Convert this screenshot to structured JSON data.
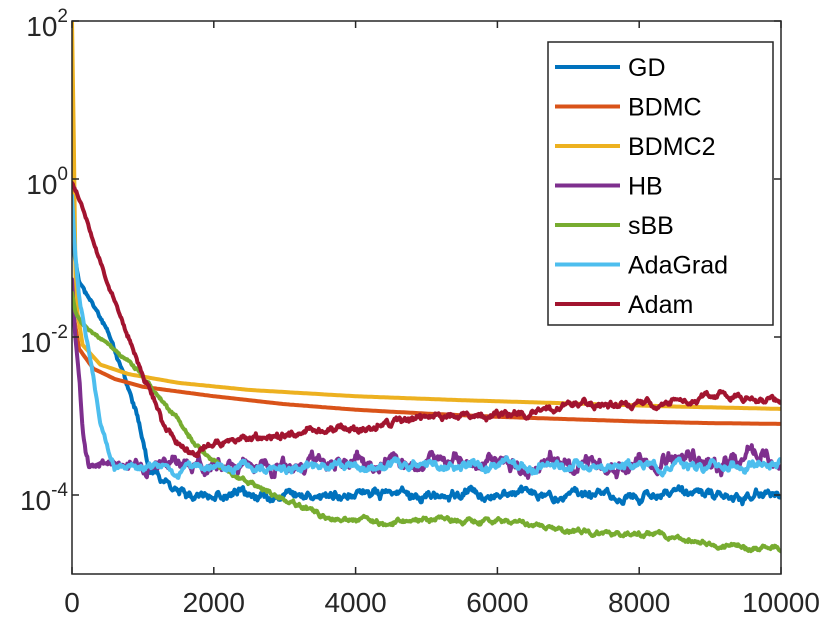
{
  "chart_data": {
    "type": "line",
    "title": "",
    "xlabel": "",
    "ylabel": "",
    "xlim": [
      0,
      10000
    ],
    "ylim_log10": [
      -5,
      2
    ],
    "y_scale": "log",
    "grid": false,
    "legend_position": "top-right",
    "x_ticks": [
      {
        "value": 0,
        "label": "0"
      },
      {
        "value": 2000,
        "label": "2000"
      },
      {
        "value": 4000,
        "label": "4000"
      },
      {
        "value": 6000,
        "label": "6000"
      },
      {
        "value": 8000,
        "label": "8000"
      },
      {
        "value": 10000,
        "label": "10000"
      }
    ],
    "y_ticks": [
      {
        "exp": 2,
        "base": "10",
        "sup": "2"
      },
      {
        "exp": 0,
        "base": "10",
        "sup": "0"
      },
      {
        "exp": -2,
        "base": "10",
        "sup": "-2"
      },
      {
        "exp": -4,
        "base": "10",
        "sup": "-4"
      }
    ],
    "series": [
      {
        "name": "GD",
        "color": "#0072BD",
        "noise": 0.035,
        "seed": 11,
        "points_log10": [
          [
            0,
            -0.4
          ],
          [
            30,
            -0.95
          ],
          [
            100,
            -1.3
          ],
          [
            300,
            -1.6
          ],
          [
            500,
            -1.9
          ],
          [
            700,
            -2.4
          ],
          [
            900,
            -2.95
          ],
          [
            1000,
            -3.3
          ],
          [
            1100,
            -3.65
          ],
          [
            1300,
            -3.8
          ],
          [
            1500,
            -3.95
          ],
          [
            1800,
            -4.0
          ],
          [
            2500,
            -4.0
          ],
          [
            3000,
            -4.02
          ],
          [
            4000,
            -3.98
          ],
          [
            5000,
            -4.0
          ],
          [
            6000,
            -3.97
          ],
          [
            7000,
            -4.0
          ],
          [
            8000,
            -4.0
          ],
          [
            9000,
            -4.0
          ],
          [
            10000,
            -4.0
          ]
        ]
      },
      {
        "name": "BDMC",
        "color": "#D95319",
        "noise": 0,
        "seed": 0,
        "points_log10": [
          [
            0,
            -1.6
          ],
          [
            100,
            -2.15
          ],
          [
            300,
            -2.4
          ],
          [
            600,
            -2.53
          ],
          [
            1000,
            -2.63
          ],
          [
            2000,
            -2.75
          ],
          [
            3000,
            -2.85
          ],
          [
            4000,
            -2.92
          ],
          [
            5000,
            -2.97
          ],
          [
            6000,
            -3.01
          ],
          [
            7000,
            -3.04
          ],
          [
            8000,
            -3.07
          ],
          [
            9000,
            -3.09
          ],
          [
            10000,
            -3.1
          ]
        ]
      },
      {
        "name": "BDMC2",
        "color": "#EDB120",
        "noise": 0,
        "seed": 0,
        "points_log10": [
          [
            0,
            2.0
          ],
          [
            20,
            1.5
          ],
          [
            30,
            -0.5
          ],
          [
            60,
            -1.6
          ],
          [
            150,
            -2.1
          ],
          [
            400,
            -2.35
          ],
          [
            800,
            -2.47
          ],
          [
            1500,
            -2.58
          ],
          [
            2500,
            -2.67
          ],
          [
            4000,
            -2.75
          ],
          [
            5500,
            -2.8
          ],
          [
            7000,
            -2.84
          ],
          [
            8500,
            -2.88
          ],
          [
            10000,
            -2.91
          ]
        ]
      },
      {
        "name": "HB",
        "color": "#7E2F8E",
        "noise": 0.06,
        "seed": 23,
        "points_log10": [
          [
            0,
            -1.3
          ],
          [
            40,
            -1.95
          ],
          [
            100,
            -2.5
          ],
          [
            150,
            -3.2
          ],
          [
            200,
            -3.5
          ],
          [
            250,
            -3.65
          ],
          [
            400,
            -3.62
          ],
          [
            1000,
            -3.6
          ],
          [
            3000,
            -3.6
          ],
          [
            5000,
            -3.58
          ],
          [
            7000,
            -3.6
          ],
          [
            10000,
            -3.58
          ]
        ]
      },
      {
        "name": "sBB",
        "color": "#77AC30",
        "noise": 0.02,
        "seed": 37,
        "points_log10": [
          [
            0,
            -1.45
          ],
          [
            50,
            -1.7
          ],
          [
            150,
            -1.85
          ],
          [
            300,
            -1.95
          ],
          [
            600,
            -2.15
          ],
          [
            900,
            -2.4
          ],
          [
            1200,
            -2.7
          ],
          [
            1500,
            -3.05
          ],
          [
            1800,
            -3.4
          ],
          [
            2100,
            -3.67
          ],
          [
            2500,
            -3.85
          ],
          [
            3000,
            -4.05
          ],
          [
            3500,
            -4.25
          ],
          [
            4000,
            -4.3
          ],
          [
            4500,
            -4.37
          ],
          [
            5000,
            -4.33
          ],
          [
            5500,
            -4.33
          ],
          [
            6000,
            -4.33
          ],
          [
            6500,
            -4.38
          ],
          [
            7000,
            -4.45
          ],
          [
            7500,
            -4.5
          ],
          [
            8000,
            -4.5
          ],
          [
            8500,
            -4.53
          ],
          [
            9000,
            -4.6
          ],
          [
            9500,
            -4.68
          ],
          [
            10000,
            -4.68
          ]
        ]
      },
      {
        "name": "AdaGrad",
        "color": "#4DBEEE",
        "noise": 0.035,
        "seed": 51,
        "points_log10": [
          [
            0,
            -0.2
          ],
          [
            40,
            -0.9
          ],
          [
            100,
            -1.5
          ],
          [
            200,
            -2.0
          ],
          [
            300,
            -2.5
          ],
          [
            400,
            -3.1
          ],
          [
            500,
            -3.4
          ],
          [
            600,
            -3.65
          ],
          [
            800,
            -3.68
          ],
          [
            2000,
            -3.65
          ],
          [
            4000,
            -3.65
          ],
          [
            6000,
            -3.62
          ],
          [
            8000,
            -3.64
          ],
          [
            10000,
            -3.63
          ]
        ]
      },
      {
        "name": "Adam",
        "color": "#A2142F",
        "noise": 0.03,
        "seed": 79,
        "points_log10": [
          [
            0,
            -0.05
          ],
          [
            150,
            -0.35
          ],
          [
            300,
            -0.8
          ],
          [
            500,
            -1.3
          ],
          [
            700,
            -1.75
          ],
          [
            900,
            -2.2
          ],
          [
            1100,
            -2.7
          ],
          [
            1200,
            -2.95
          ],
          [
            1400,
            -3.25
          ],
          [
            1600,
            -3.45
          ],
          [
            1800,
            -3.45
          ],
          [
            2200,
            -3.35
          ],
          [
            2700,
            -3.3
          ],
          [
            3000,
            -3.25
          ],
          [
            3500,
            -3.15
          ],
          [
            4000,
            -3.15
          ],
          [
            4500,
            -3.1
          ],
          [
            5000,
            -3.03
          ],
          [
            5500,
            -3.0
          ],
          [
            6000,
            -3.0
          ],
          [
            6500,
            -2.95
          ],
          [
            7000,
            -2.9
          ],
          [
            7500,
            -2.85
          ],
          [
            8000,
            -2.85
          ],
          [
            8500,
            -2.82
          ],
          [
            9000,
            -2.78
          ],
          [
            9500,
            -2.76
          ],
          [
            10000,
            -2.78
          ]
        ]
      }
    ]
  }
}
